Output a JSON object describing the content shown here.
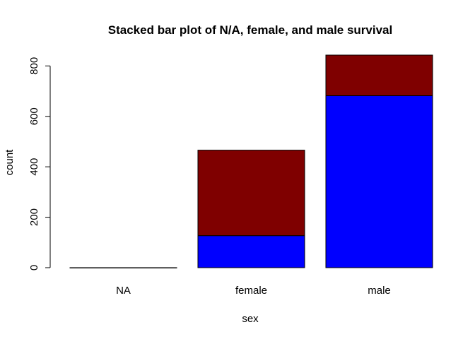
{
  "chart_data": {
    "type": "bar",
    "stacked": true,
    "title": "Stacked bar plot of N/A, female, and male survival",
    "xlabel": "sex",
    "ylabel": "count",
    "categories": [
      "NA",
      "female",
      "male"
    ],
    "series": [
      {
        "values": [
          0,
          127,
          682
        ],
        "color": "#0000ff"
      },
      {
        "values": [
          0,
          339,
          161
        ],
        "color": "#7f0000"
      }
    ],
    "ylim": [
      0,
      843
    ],
    "yticks": [
      0,
      200,
      400,
      600,
      800
    ],
    "grid": false,
    "legend": "none"
  }
}
